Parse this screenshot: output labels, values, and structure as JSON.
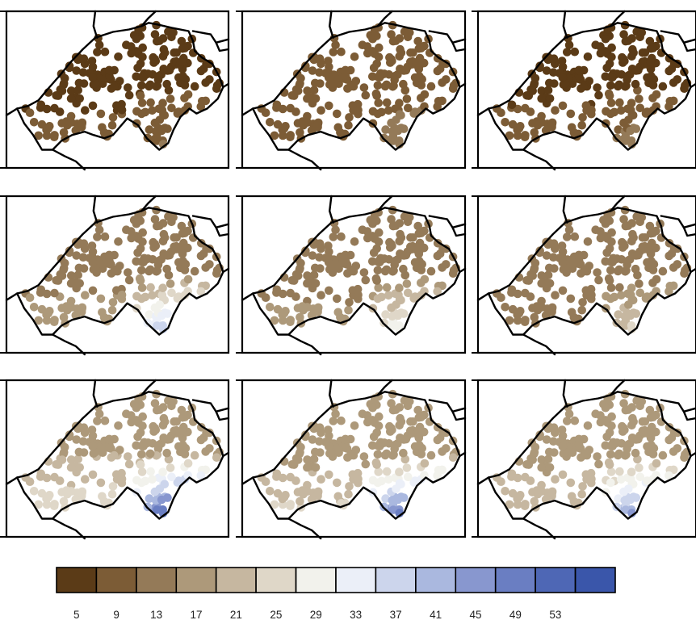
{
  "colorbar": {
    "colors": [
      "#5b3b17",
      "#7c5c36",
      "#947a58",
      "#ad997a",
      "#c6b7a0",
      "#dfd7c8",
      "#f2f2ec",
      "#ebeff8",
      "#ccd5ec",
      "#aab8df",
      "#8897cf",
      "#6a7ec2",
      "#4e67b5",
      "#3a56aa"
    ],
    "tick_labels": [
      "5",
      "9",
      "13",
      "17",
      "21",
      "25",
      "29",
      "33",
      "37",
      "41",
      "45",
      "49",
      "53"
    ]
  },
  "panels": [
    {
      "row": 0,
      "col": 0,
      "level_north": 4.5,
      "level_south": 10
    },
    {
      "row": 0,
      "col": 1,
      "level_north": 5.5,
      "level_south": 14
    },
    {
      "row": 0,
      "col": 2,
      "level_north": 4.5,
      "level_south": 12
    },
    {
      "row": 1,
      "col": 0,
      "level_north": 10.5,
      "level_south": 42
    },
    {
      "row": 1,
      "col": 1,
      "level_north": 10.5,
      "level_south": 32
    },
    {
      "row": 1,
      "col": 2,
      "level_north": 9.5,
      "level_south": 25
    },
    {
      "row": 2,
      "col": 0,
      "level_north": 17,
      "level_south": 55
    },
    {
      "row": 2,
      "col": 1,
      "level_north": 15,
      "level_south": 53
    },
    {
      "row": 2,
      "col": 2,
      "level_north": 15,
      "level_south": 47
    }
  ]
}
